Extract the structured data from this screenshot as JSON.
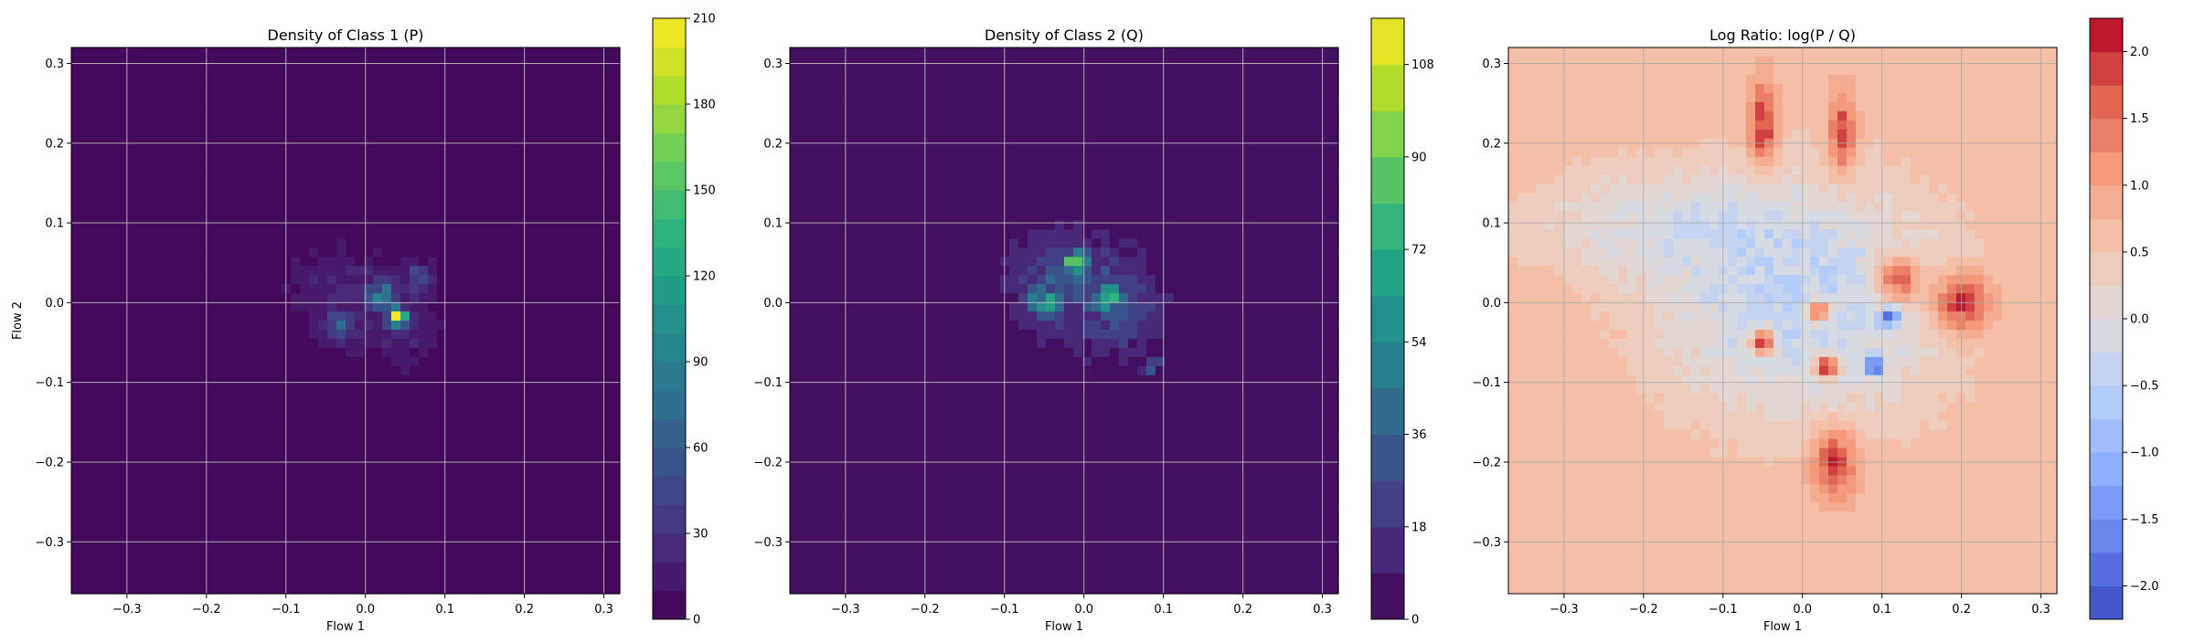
{
  "chart_data": [
    {
      "type": "heatmap",
      "title": "Density of Class 1 (P)",
      "xlabel": "Flow 1",
      "ylabel": "Flow 2",
      "xlim": [
        -0.37,
        0.32
      ],
      "ylim": [
        -0.365,
        0.32
      ],
      "x_ticks": [
        -0.3,
        -0.2,
        -0.1,
        0.0,
        0.1,
        0.2,
        0.3
      ],
      "y_ticks": [
        -0.3,
        -0.2,
        -0.1,
        0.0,
        0.1,
        0.2,
        0.3
      ],
      "x_tick_labels": [
        "−0.3",
        "−0.2",
        "−0.1",
        "0.0",
        "0.1",
        "0.2",
        "0.3"
      ],
      "y_tick_labels": [
        "−0.3",
        "−0.2",
        "−0.1",
        "0.0",
        "0.1",
        "0.2",
        "0.3"
      ],
      "grid": true,
      "colormap": "viridis",
      "colorbar": {
        "min": 0,
        "max": 210,
        "ticks": [
          0,
          30,
          60,
          90,
          120,
          150,
          180,
          210
        ],
        "tick_labels": [
          "0",
          "30",
          "60",
          "90",
          "120",
          "150",
          "180",
          "210"
        ],
        "levels": 21
      },
      "background_value": 0,
      "blobs": [
        {
          "x": 0.0,
          "y": 0.0,
          "sx": 0.07,
          "sy": 0.055,
          "value": 12
        },
        {
          "x": -0.05,
          "y": 0.02,
          "sx": 0.04,
          "sy": 0.04,
          "value": 10
        },
        {
          "x": 0.05,
          "y": -0.03,
          "sx": 0.04,
          "sy": 0.04,
          "value": 12
        },
        {
          "x": 0.04,
          "y": -0.02,
          "sx": 0.008,
          "sy": 0.008,
          "value": 200
        },
        {
          "x": 0.02,
          "y": 0.01,
          "sx": 0.012,
          "sy": 0.012,
          "value": 60
        },
        {
          "x": -0.03,
          "y": -0.03,
          "sx": 0.012,
          "sy": 0.012,
          "value": 45
        },
        {
          "x": 0.07,
          "y": 0.03,
          "sx": 0.012,
          "sy": 0.012,
          "value": 40
        }
      ]
    },
    {
      "type": "heatmap",
      "title": "Density of Class 2 (Q)",
      "xlabel": "Flow 1",
      "ylabel": "",
      "xlim": [
        -0.37,
        0.32
      ],
      "ylim": [
        -0.365,
        0.32
      ],
      "x_ticks": [
        -0.3,
        -0.2,
        -0.1,
        0.0,
        0.1,
        0.2,
        0.3
      ],
      "y_ticks": [
        -0.3,
        -0.2,
        -0.1,
        0.0,
        0.1,
        0.2,
        0.3
      ],
      "x_tick_labels": [
        "−0.3",
        "−0.2",
        "−0.1",
        "0.0",
        "0.1",
        "0.2",
        "0.3"
      ],
      "y_tick_labels": [
        "−0.3",
        "−0.2",
        "−0.1",
        "0.0",
        "0.1",
        "0.2",
        "0.3"
      ],
      "grid": true,
      "colormap": "viridis",
      "colorbar": {
        "min": 0,
        "max": 117,
        "ticks": [
          0,
          18,
          36,
          54,
          72,
          90,
          108
        ],
        "tick_labels": [
          "0",
          "18",
          "36",
          "54",
          "72",
          "90",
          "108"
        ],
        "levels": 13
      },
      "background_value": 0,
      "blobs": [
        {
          "x": 0.0,
          "y": 0.02,
          "sx": 0.08,
          "sy": 0.06,
          "value": 14
        },
        {
          "x": -0.04,
          "y": 0.03,
          "sx": 0.04,
          "sy": 0.04,
          "value": 14
        },
        {
          "x": 0.05,
          "y": -0.02,
          "sx": 0.04,
          "sy": 0.04,
          "value": 12
        },
        {
          "x": -0.01,
          "y": 0.05,
          "sx": 0.01,
          "sy": 0.01,
          "value": 70
        },
        {
          "x": 0.03,
          "y": 0.01,
          "sx": 0.01,
          "sy": 0.01,
          "value": 65
        },
        {
          "x": -0.05,
          "y": 0.0,
          "sx": 0.01,
          "sy": 0.01,
          "value": 55
        },
        {
          "x": 0.09,
          "y": -0.08,
          "sx": 0.008,
          "sy": 0.008,
          "value": 50
        }
      ]
    },
    {
      "type": "heatmap",
      "title": "Log Ratio: log(P / Q)",
      "xlabel": "Flow 1",
      "ylabel": "",
      "xlim": [
        -0.37,
        0.32
      ],
      "ylim": [
        -0.365,
        0.32
      ],
      "x_ticks": [
        -0.3,
        -0.2,
        -0.1,
        0.0,
        0.1,
        0.2,
        0.3
      ],
      "y_ticks": [
        -0.3,
        -0.2,
        -0.1,
        0.0,
        0.1,
        0.2,
        0.3
      ],
      "x_tick_labels": [
        "−0.3",
        "−0.2",
        "−0.1",
        "0.0",
        "0.1",
        "0.2",
        "0.3"
      ],
      "y_tick_labels": [
        "−0.3",
        "−0.2",
        "−0.1",
        "0.0",
        "0.1",
        "0.2",
        "0.3"
      ],
      "grid": true,
      "colormap": "coolwarm",
      "colorbar": {
        "min": -2.25,
        "max": 2.25,
        "ticks": [
          -2.0,
          -1.5,
          -1.0,
          -0.5,
          0.0,
          0.5,
          1.0,
          1.5,
          2.0
        ],
        "tick_labels": [
          "−2.0",
          "−1.5",
          "−1.0",
          "−0.5",
          "0.0",
          "0.5",
          "1.0",
          "1.5",
          "2.0"
        ],
        "levels": 18
      },
      "background_value": 0.7,
      "blobs": [
        {
          "x": 0.0,
          "y": 0.0,
          "sx": 0.13,
          "sy": 0.11,
          "value": -1.1
        },
        {
          "x": -0.2,
          "y": 0.1,
          "sx": 0.12,
          "sy": 0.05,
          "value": -0.6
        },
        {
          "x": 0.2,
          "y": 0.0,
          "sx": 0.025,
          "sy": 0.025,
          "value": 1.6
        },
        {
          "x": 0.12,
          "y": 0.03,
          "sx": 0.02,
          "sy": 0.02,
          "value": 1.6
        },
        {
          "x": -0.05,
          "y": 0.22,
          "sx": 0.012,
          "sy": 0.035,
          "value": 1.4
        },
        {
          "x": 0.05,
          "y": 0.21,
          "sx": 0.012,
          "sy": 0.035,
          "value": 1.3
        },
        {
          "x": 0.04,
          "y": -0.2,
          "sx": 0.02,
          "sy": 0.03,
          "value": 1.4
        },
        {
          "x": -0.05,
          "y": -0.05,
          "sx": 0.01,
          "sy": 0.01,
          "value": 2.4
        },
        {
          "x": 0.03,
          "y": -0.08,
          "sx": 0.01,
          "sy": 0.01,
          "value": 2.2
        },
        {
          "x": 0.02,
          "y": -0.01,
          "sx": 0.01,
          "sy": 0.01,
          "value": 2.2
        },
        {
          "x": 0.11,
          "y": -0.02,
          "sx": 0.008,
          "sy": 0.008,
          "value": -2.6
        },
        {
          "x": 0.09,
          "y": -0.08,
          "sx": 0.008,
          "sy": 0.008,
          "value": -2.0
        }
      ]
    }
  ]
}
